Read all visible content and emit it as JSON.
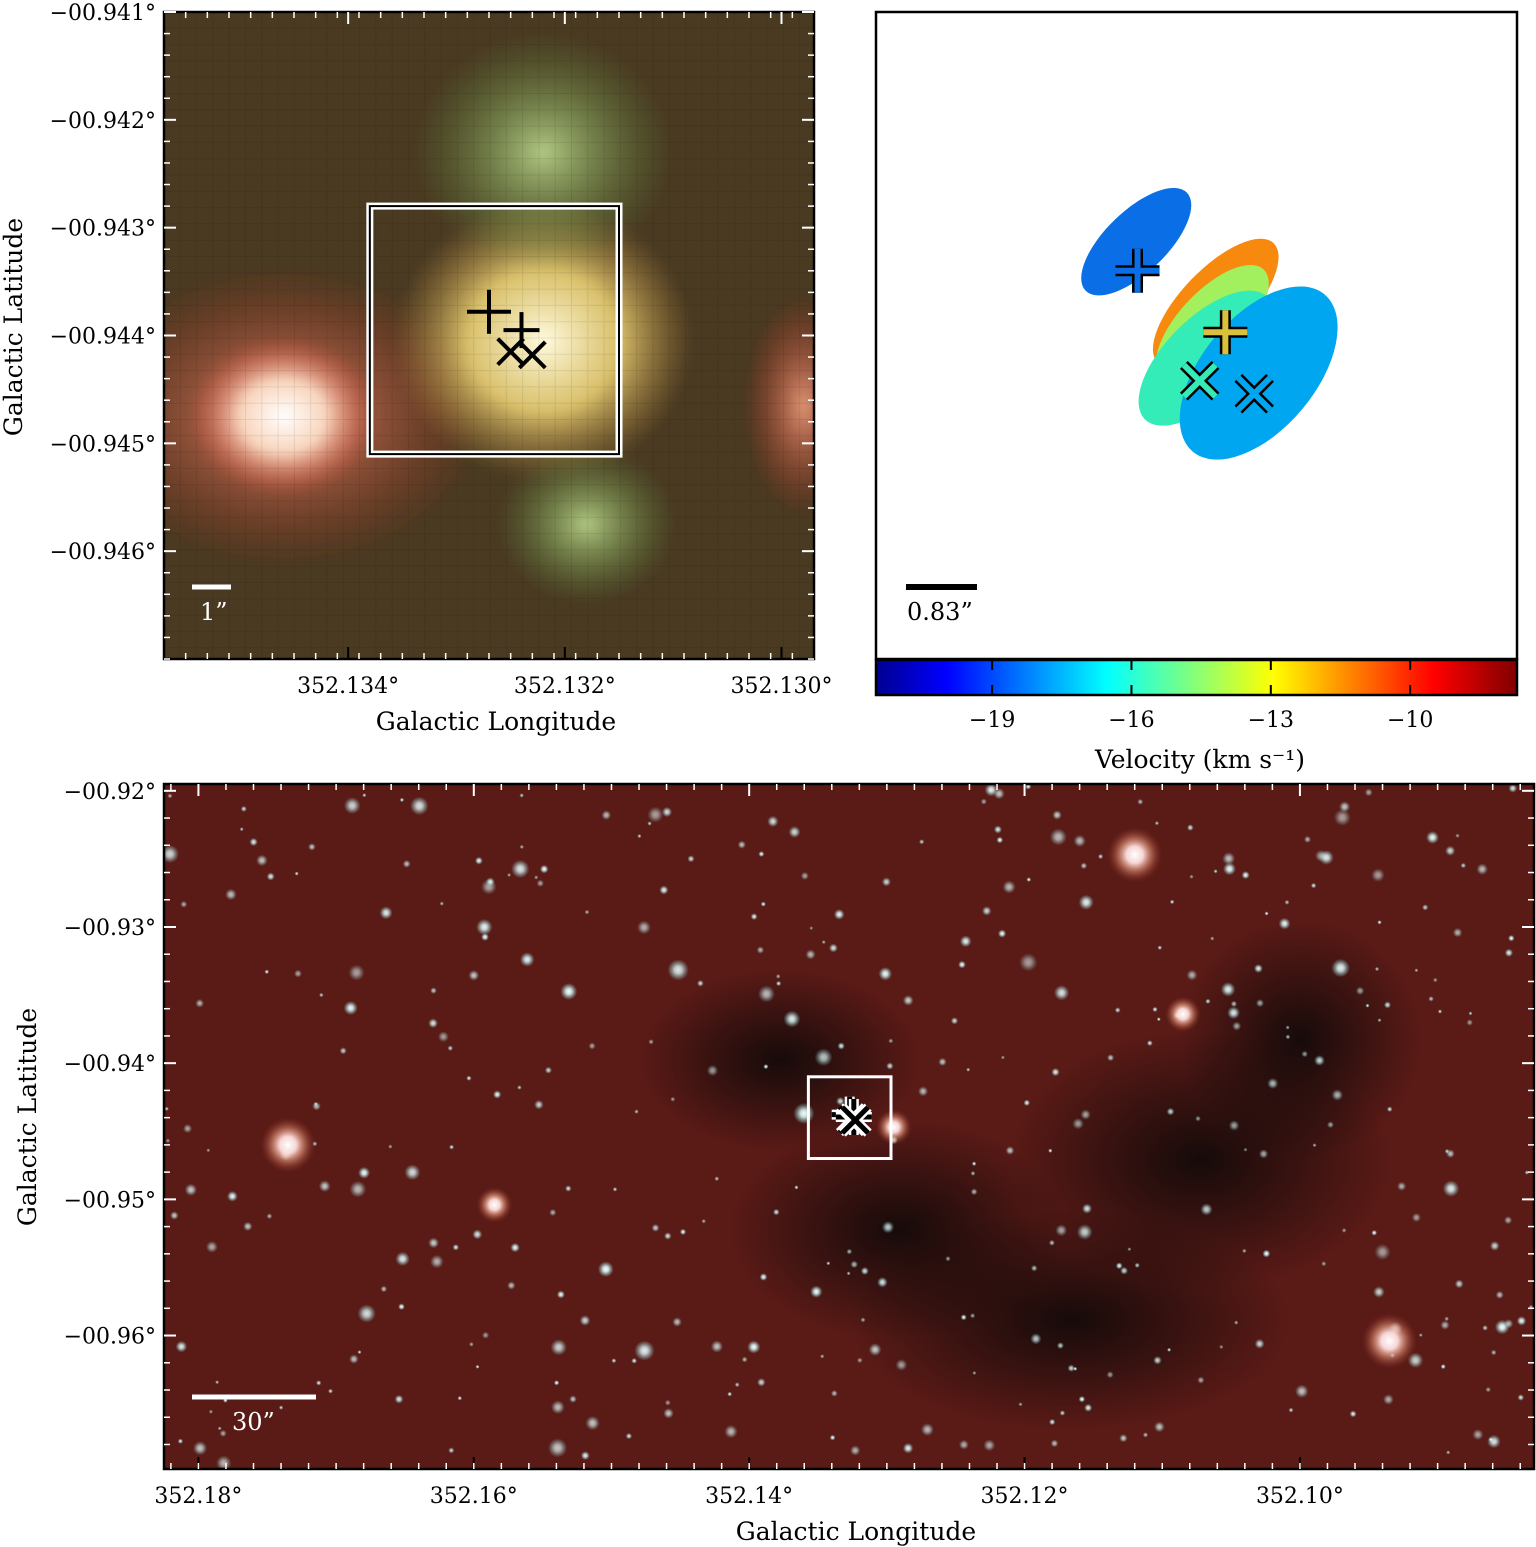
{
  "chart_data": [
    {
      "type": "image",
      "panel": "top-left",
      "xlabel": "Galactic Longitude",
      "ylabel": "Galactic Latitude",
      "xlim": [
        352.1357,
        352.1297
      ],
      "ylim": [
        -0.947,
        -0.941
      ],
      "x_ticks": [
        352.134,
        352.132,
        352.13
      ],
      "x_tick_labels": [
        "352.134°",
        "352.132°",
        "352.130°"
      ],
      "y_ticks": [
        -0.941,
        -0.942,
        -0.943,
        -0.944,
        -0.945,
        -0.946
      ],
      "y_tick_labels": [
        "−00.941°",
        "−00.942°",
        "−00.943°",
        "−00.944°",
        "−00.945°",
        "−00.946°"
      ],
      "scale_bar_label": "1”",
      "box": {
        "l": [
          352.1338,
          352.1315
        ],
        "b": [
          -0.9451,
          -0.9428
        ]
      },
      "markers": [
        {
          "symbol": "+",
          "l": 352.1327,
          "b": -0.94378
        },
        {
          "symbol": "+",
          "l": 352.1324,
          "b": -0.94395
        },
        {
          "symbol": "x",
          "l": 352.1325,
          "b": -0.94415
        },
        {
          "symbol": "x",
          "l": 352.1323,
          "b": -0.94418
        }
      ],
      "blobs": [
        {
          "color": "#fff2ea",
          "l": 352.1346,
          "b": -0.94475
        },
        {
          "color": "#fff6c4",
          "l": 352.1322,
          "b": -0.94405
        },
        {
          "color": "#9ab860",
          "l": 352.1322,
          "b": -0.9423
        },
        {
          "color": "#86aa60",
          "l": 352.1318,
          "b": -0.94575
        },
        {
          "color": "#e3bea2",
          "l": 352.1298,
          "b": -0.94465
        }
      ]
    },
    {
      "type": "scatter",
      "panel": "top-right",
      "xlim": [
        0,
        1
      ],
      "ylim": [
        0,
        1
      ],
      "scale_bar_label": "0.83”",
      "ellipses": [
        {
          "velocity": -17.8,
          "color": "#0a6fe6",
          "x": 0.406,
          "y": 0.645,
          "w": 0.22,
          "h": 0.095,
          "angle": -44
        },
        {
          "velocity": -10.8,
          "color": "#f7890e",
          "x": 0.53,
          "y": 0.55,
          "w": 0.26,
          "h": 0.105,
          "angle": -46
        },
        {
          "velocity": -13.8,
          "color": "#a2f05e",
          "x": 0.525,
          "y": 0.52,
          "w": 0.23,
          "h": 0.1,
          "angle": -46
        },
        {
          "velocity": -15.8,
          "color": "#33ecb8",
          "x": 0.515,
          "y": 0.465,
          "w": 0.27,
          "h": 0.125,
          "angle": -45
        },
        {
          "velocity": -16.8,
          "color": "#00a6f0",
          "x": 0.597,
          "y": 0.442,
          "w": 0.32,
          "h": 0.175,
          "angle": -50
        }
      ],
      "markers": [
        {
          "symbol": "+",
          "velocity": -17.8,
          "color": "#0a6fe6",
          "x": 0.408,
          "y": 0.6
        },
        {
          "symbol": "+",
          "velocity": -13.8,
          "color": "#d9c23a",
          "x": 0.545,
          "y": 0.505
        },
        {
          "symbol": "x",
          "velocity": -15.8,
          "color": "#33ecb8",
          "x": 0.505,
          "y": 0.43
        },
        {
          "symbol": "x",
          "velocity": -16.8,
          "color": "#00a6f0",
          "x": 0.59,
          "y": 0.41
        }
      ]
    },
    {
      "type": "colorbar",
      "panel": "top-right-colorbar",
      "xlabel": "Velocity (km s⁻¹)",
      "xlim": [
        -21.5,
        -7.7
      ],
      "ticks": [
        -19,
        -16,
        -13,
        -10
      ],
      "tick_labels": [
        "−19",
        "−16",
        "−13",
        "−10"
      ],
      "colormap": "jet"
    },
    {
      "type": "image",
      "panel": "bottom",
      "xlabel": "Galactic Longitude",
      "ylabel": "Galactic Latitude",
      "xlim": [
        352.1825,
        352.083
      ],
      "ylim": [
        -0.9698,
        -0.9195
      ],
      "x_ticks": [
        352.18,
        352.16,
        352.14,
        352.12,
        352.1
      ],
      "x_tick_labels": [
        "352.18°",
        "352.16°",
        "352.14°",
        "352.12°",
        "352.10°"
      ],
      "y_ticks": [
        -0.92,
        -0.93,
        -0.94,
        -0.95,
        -0.96
      ],
      "y_tick_labels": [
        "−00.92°",
        "−00.93°",
        "−00.94°",
        "−00.95°",
        "−00.96°"
      ],
      "scale_bar_label": "30”",
      "box": {
        "l": [
          352.1357,
          352.1297
        ],
        "b": [
          -0.947,
          -0.941
        ]
      },
      "markers": [
        {
          "symbol": "+",
          "l": 352.1327,
          "b": -0.94378
        },
        {
          "symbol": "+",
          "l": 352.1324,
          "b": -0.94395
        },
        {
          "symbol": "x",
          "l": 352.1325,
          "b": -0.94415
        },
        {
          "symbol": "x",
          "l": 352.1323,
          "b": -0.94418
        }
      ],
      "bright_sources": [
        {
          "l": 352.1735,
          "b": -0.946
        },
        {
          "l": 352.112,
          "b": -0.9247
        },
        {
          "l": 352.0935,
          "b": -0.9604
        },
        {
          "l": 352.1585,
          "b": -0.9504
        },
        {
          "l": 352.1085,
          "b": -0.9364
        },
        {
          "l": 352.1295,
          "b": -0.9447
        }
      ]
    }
  ]
}
